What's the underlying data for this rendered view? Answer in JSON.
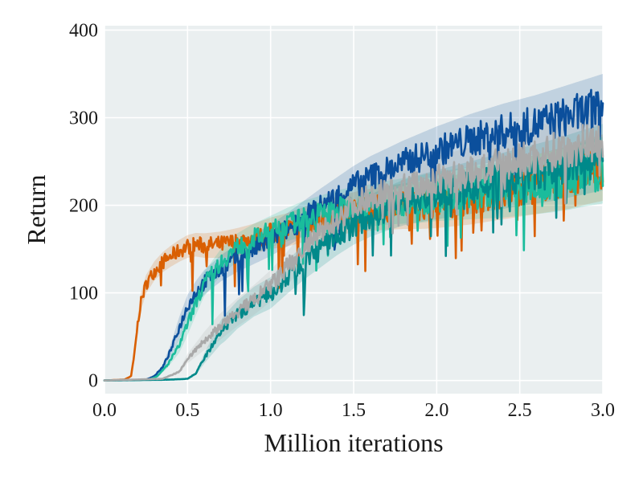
{
  "chart_data": {
    "type": "line",
    "title": "",
    "xlabel": "Million iterations",
    "ylabel": "Return",
    "xlim": [
      0.0,
      3.0
    ],
    "ylim": [
      -15,
      405
    ],
    "xticks": [
      0.0,
      0.5,
      1.0,
      1.5,
      2.0,
      2.5,
      3.0
    ],
    "xtick_labels": [
      "0.0",
      "0.5",
      "1.0",
      "1.5",
      "2.0",
      "2.5",
      "3.0"
    ],
    "yticks": [
      0,
      100,
      200,
      300,
      400
    ],
    "ytick_labels": [
      "0",
      "100",
      "200",
      "300",
      "400"
    ],
    "grid": true,
    "background": "#eaeff0",
    "legend": "none",
    "series": [
      {
        "color": "#d95f02",
        "x": [
          0,
          0.12,
          0.16,
          0.18,
          0.2,
          0.22,
          0.25,
          0.3,
          0.35,
          0.4,
          0.45,
          0.5,
          0.55,
          0.6,
          0.7,
          0.8,
          0.9,
          1.0,
          1.1,
          1.2,
          1.3,
          1.4,
          1.5,
          1.6,
          1.7,
          1.8,
          1.9,
          2.0,
          2.1,
          2.2,
          2.3,
          2.4,
          2.5,
          2.6,
          2.7,
          2.8,
          2.9,
          3.0
        ],
        "y": [
          0,
          1,
          5,
          30,
          65,
          90,
          110,
          125,
          135,
          142,
          148,
          153,
          155,
          154,
          155,
          158,
          162,
          168,
          172,
          178,
          183,
          188,
          192,
          195,
          197,
          199,
          200,
          202,
          205,
          208,
          212,
          216,
          220,
          224,
          228,
          232,
          238,
          243
        ]
      },
      {
        "color": "#0b4f9c",
        "x": [
          0,
          0.25,
          0.3,
          0.35,
          0.4,
          0.45,
          0.5,
          0.55,
          0.6,
          0.7,
          0.8,
          0.9,
          1.0,
          1.1,
          1.2,
          1.3,
          1.4,
          1.5,
          1.6,
          1.7,
          1.8,
          1.9,
          2.0,
          2.1,
          2.2,
          2.3,
          2.4,
          2.5,
          2.6,
          2.7,
          2.8,
          2.9,
          3.0
        ],
        "y": [
          0,
          1,
          5,
          15,
          35,
          60,
          85,
          100,
          112,
          128,
          140,
          150,
          160,
          172,
          185,
          198,
          210,
          222,
          232,
          240,
          248,
          255,
          262,
          268,
          274,
          279,
          284,
          288,
          292,
          297,
          302,
          307,
          312
        ]
      },
      {
        "color": "#1abc9c",
        "x": [
          0,
          0.27,
          0.32,
          0.38,
          0.45,
          0.5,
          0.55,
          0.6,
          0.7,
          0.8,
          0.9,
          1.0,
          1.1,
          1.2,
          1.3,
          1.4,
          1.5,
          1.6,
          1.7,
          1.8,
          1.9,
          2.0,
          2.1,
          2.2,
          2.3,
          2.4,
          2.5,
          2.6,
          2.7,
          2.8,
          2.9,
          3.0
        ],
        "y": [
          0,
          1,
          5,
          18,
          40,
          65,
          88,
          110,
          135,
          152,
          162,
          170,
          178,
          185,
          190,
          195,
          198,
          200,
          203,
          205,
          207,
          210,
          212,
          214,
          216,
          218,
          221,
          224,
          227,
          231,
          236,
          240
        ]
      },
      {
        "color": "#00898a",
        "x": [
          0,
          0.4,
          0.5,
          0.55,
          0.6,
          0.7,
          0.8,
          0.9,
          1.0,
          1.1,
          1.2,
          1.3,
          1.4,
          1.5,
          1.6,
          1.7,
          1.8,
          1.9,
          2.0,
          2.1,
          2.2,
          2.3,
          2.4,
          2.5,
          2.6,
          2.7,
          2.8,
          2.9,
          3.0
        ],
        "y": [
          0,
          1,
          2,
          8,
          25,
          55,
          75,
          90,
          100,
          118,
          135,
          150,
          165,
          178,
          188,
          196,
          203,
          208,
          212,
          216,
          220,
          224,
          228,
          232,
          236,
          240,
          245,
          250,
          255
        ]
      },
      {
        "color": "#a9a9a9",
        "x": [
          0,
          0.35,
          0.45,
          0.5,
          0.6,
          0.7,
          0.8,
          0.9,
          1.0,
          1.1,
          1.2,
          1.3,
          1.4,
          1.5,
          1.6,
          1.7,
          1.8,
          1.9,
          2.0,
          2.1,
          2.2,
          2.3,
          2.4,
          2.5,
          2.6,
          2.7,
          2.8,
          2.9,
          3.0
        ],
        "y": [
          0,
          2,
          10,
          25,
          45,
          62,
          78,
          92,
          108,
          128,
          150,
          168,
          185,
          200,
          210,
          216,
          220,
          224,
          228,
          232,
          236,
          241,
          246,
          251,
          256,
          261,
          266,
          271,
          276
        ]
      }
    ]
  }
}
